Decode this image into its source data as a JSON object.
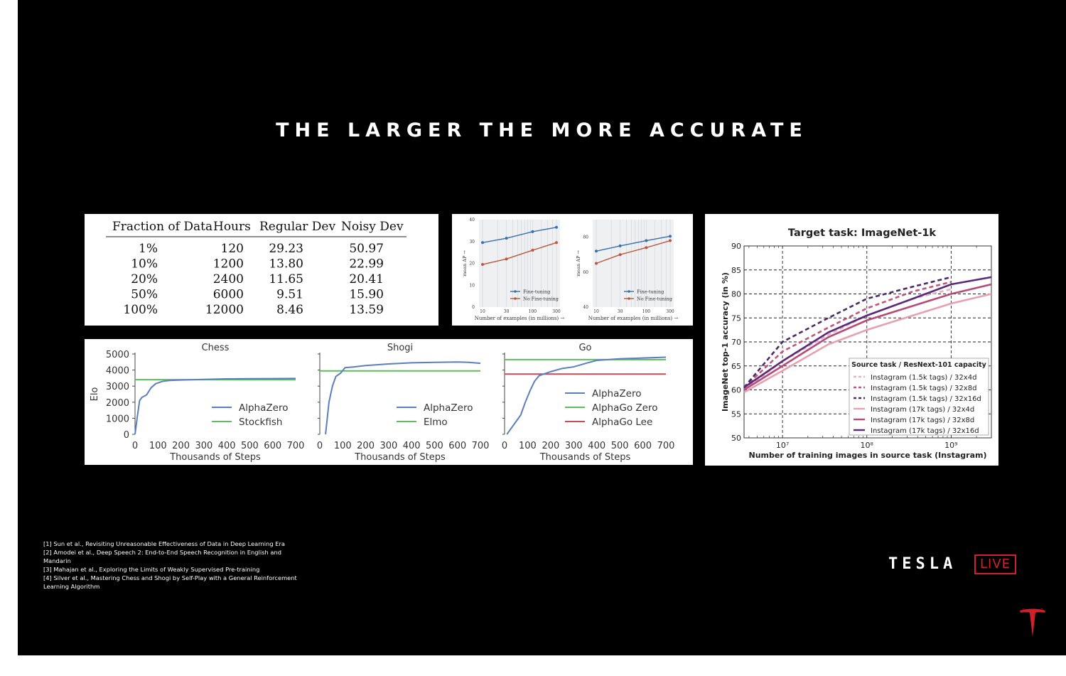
{
  "slide": {
    "title": "THE LARGER THE MORE ACCURATE",
    "references": [
      "[1] Sun et al., Revisiting Unreasonable Effectiveness of Data in Deep Learning Era",
      "[2] Amodei et al., Deep Speech 2: End-to-End Speech Recognition in English and Mandarin",
      "[3] Mahajan et al., Exploring the Limits of Weakly Supervised Pre-training",
      "[4] Silver et al., Mastering Chess and Shogi by Self-Play with a General Reinforcement Learning Algorithm"
    ],
    "brand": {
      "wordmark": "TESLA",
      "live": "LIVE",
      "logo_icon": "tesla-t-logo-icon",
      "accent": "#d0202a"
    }
  },
  "chart_data": [
    {
      "type": "table",
      "columns": [
        "Fraction of Data",
        "Hours",
        "Regular Dev",
        "Noisy Dev"
      ],
      "rows": [
        [
          "1%",
          "120",
          "29.23",
          "50.97"
        ],
        [
          "10%",
          "1200",
          "13.80",
          "22.99"
        ],
        [
          "20%",
          "2400",
          "11.65",
          "20.41"
        ],
        [
          "50%",
          "6000",
          "9.51",
          "15.90"
        ],
        [
          "100%",
          "12000",
          "8.46",
          "13.59"
        ]
      ]
    },
    {
      "type": "line",
      "xlabel": "Number of examples (in millions) →",
      "ylabel": "mean AP →",
      "x": [
        10,
        30,
        100,
        300
      ],
      "xticks": [
        "10",
        "30",
        "100",
        "300"
      ],
      "ylim": [
        0,
        40
      ],
      "yticks": [
        0,
        10,
        20,
        30,
        40
      ],
      "series": [
        {
          "name": "Fine-tuning",
          "color": "#3a6fb0",
          "values": [
            29.5,
            31.5,
            34.5,
            36.5
          ]
        },
        {
          "name": "No Fine-tuning",
          "color": "#c0553a",
          "values": [
            19.5,
            22.0,
            26.0,
            29.5
          ]
        }
      ],
      "legend": "bottom-right"
    },
    {
      "type": "line",
      "xlabel": "Number of examples (in millions) →",
      "ylabel": "mean AP →",
      "x": [
        10,
        30,
        100,
        300
      ],
      "xticks": [
        "10",
        "30",
        "100",
        "300"
      ],
      "ylim": [
        40,
        90
      ],
      "yticks": [
        40,
        60,
        80
      ],
      "series": [
        {
          "name": "Fine-tuning",
          "color": "#3a6fb0",
          "values": [
            72.0,
            75.0,
            78.0,
            80.5
          ]
        },
        {
          "name": "No Fine-tuning",
          "color": "#c0553a",
          "values": [
            65.0,
            70.0,
            74.0,
            78.0
          ]
        }
      ],
      "legend": "bottom-right"
    },
    {
      "type": "line",
      "title": "Chess",
      "xlabel": "Thousands of Steps",
      "ylabel": "Elo",
      "xlim": [
        0,
        700
      ],
      "xticks": [
        0,
        100,
        200,
        300,
        400,
        500,
        600,
        700
      ],
      "ylim": [
        0,
        5000
      ],
      "yticks": [
        0,
        1000,
        2000,
        3000,
        4000,
        5000
      ],
      "series": [
        {
          "name": "AlphaZero",
          "color": "#5b7ec0",
          "points": [
            [
              0,
              0
            ],
            [
              10,
              1100
            ],
            [
              20,
              2100
            ],
            [
              30,
              2300
            ],
            [
              50,
              2450
            ],
            [
              70,
              2900
            ],
            [
              90,
              3150
            ],
            [
              120,
              3300
            ],
            [
              150,
              3350
            ],
            [
              200,
              3380
            ],
            [
              300,
              3420
            ],
            [
              400,
              3450
            ],
            [
              500,
              3460
            ],
            [
              600,
              3470
            ],
            [
              700,
              3480
            ]
          ]
        },
        {
          "name": "Stockfish",
          "color": "#5cbf5c",
          "points": [
            [
              0,
              3400
            ],
            [
              700,
              3400
            ]
          ]
        }
      ],
      "legend": "bottom-right"
    },
    {
      "type": "line",
      "title": "Shogi",
      "xlabel": "Thousands of Steps",
      "xlim": [
        0,
        700
      ],
      "xticks": [
        0,
        100,
        200,
        300,
        400,
        500,
        600,
        700
      ],
      "ylim": [
        0,
        5000
      ],
      "series": [
        {
          "name": "AlphaZero",
          "color": "#5b7ec0",
          "points": [
            [
              25,
              0
            ],
            [
              40,
              2000
            ],
            [
              55,
              3000
            ],
            [
              70,
              3600
            ],
            [
              90,
              3800
            ],
            [
              110,
              4150
            ],
            [
              150,
              4200
            ],
            [
              200,
              4280
            ],
            [
              300,
              4380
            ],
            [
              400,
              4450
            ],
            [
              500,
              4480
            ],
            [
              600,
              4500
            ],
            [
              650,
              4480
            ],
            [
              700,
              4420
            ]
          ]
        },
        {
          "name": "Elmo",
          "color": "#5cbf5c",
          "points": [
            [
              0,
              3950
            ],
            [
              700,
              3950
            ]
          ]
        }
      ],
      "legend": "bottom-right"
    },
    {
      "type": "line",
      "title": "Go",
      "xlabel": "Thousands of Steps",
      "xlim": [
        0,
        700
      ],
      "xticks": [
        0,
        100,
        200,
        300,
        400,
        500,
        600,
        700
      ],
      "ylim": [
        0,
        5000
      ],
      "series": [
        {
          "name": "AlphaZero",
          "color": "#5b7ec0",
          "points": [
            [
              10,
              0
            ],
            [
              40,
              600
            ],
            [
              70,
              1200
            ],
            [
              90,
              2000
            ],
            [
              110,
              2700
            ],
            [
              130,
              3300
            ],
            [
              150,
              3650
            ],
            [
              200,
              3900
            ],
            [
              250,
              4100
            ],
            [
              300,
              4200
            ],
            [
              360,
              4450
            ],
            [
              400,
              4600
            ],
            [
              500,
              4700
            ],
            [
              600,
              4750
            ],
            [
              700,
              4800
            ]
          ]
        },
        {
          "name": "AlphaGo Zero",
          "color": "#5cbf5c",
          "points": [
            [
              0,
              4650
            ],
            [
              700,
              4650
            ]
          ]
        },
        {
          "name": "AlphaGo Lee",
          "color": "#c94a5a",
          "points": [
            [
              0,
              3750
            ],
            [
              700,
              3750
            ]
          ]
        }
      ],
      "legend": "center-right"
    },
    {
      "type": "line",
      "title": "Target task: ImageNet-1k",
      "xlabel": "Number of training images in source task (Instagram)",
      "ylabel": "ImageNet top-1 accuracy (in %)",
      "xscale": "log",
      "xlim": [
        3500000,
        3000000000
      ],
      "xticks": [
        "10⁷",
        "10⁸",
        "10⁹"
      ],
      "ylim": [
        50,
        90
      ],
      "yticks": [
        50,
        55,
        60,
        65,
        70,
        75,
        80,
        85,
        90
      ],
      "legend_title": "Source task / ResNext-101 capacity",
      "series": [
        {
          "name": "Instagram (1.5k tags) / 32x4d",
          "color": "#e6b3c5",
          "dash": "dashed",
          "x": [
            3500000,
            10000000,
            35000000,
            100000000,
            350000000,
            1000000000
          ],
          "values": [
            60.0,
            66.0,
            71.5,
            75.5,
            79.0,
            81.0
          ]
        },
        {
          "name": "Instagram (1.5k tags) / 32x8d",
          "color": "#c2557a",
          "dash": "dashed",
          "x": [
            3500000,
            10000000,
            35000000,
            100000000,
            350000000,
            1000000000
          ],
          "values": [
            60.5,
            68.0,
            73.0,
            77.0,
            80.5,
            82.5
          ]
        },
        {
          "name": "Instagram (1.5k tags) / 32x16d",
          "color": "#4b2a6b",
          "dash": "dashed",
          "x": [
            3500000,
            10000000,
            35000000,
            100000000,
            350000000,
            1000000000
          ],
          "values": [
            60.5,
            70.0,
            75.0,
            79.0,
            81.5,
            83.5
          ]
        },
        {
          "name": "Instagram (17k tags) / 32x4d",
          "color": "#e8a0b0",
          "dash": "solid",
          "x": [
            3500000,
            10000000,
            35000000,
            100000000,
            350000000,
            1000000000,
            3000000000
          ],
          "values": [
            59.5,
            64.0,
            69.5,
            72.5,
            75.5,
            78.0,
            80.0
          ]
        },
        {
          "name": "Instagram (17k tags) / 32x8d",
          "color": "#b84a78",
          "dash": "solid",
          "x": [
            3500000,
            10000000,
            35000000,
            100000000,
            350000000,
            1000000000,
            3000000000
          ],
          "values": [
            60.0,
            65.0,
            71.0,
            74.5,
            77.5,
            80.0,
            82.0
          ]
        },
        {
          "name": "Instagram (17k tags) / 32x16d",
          "color": "#5a2a78",
          "dash": "solid",
          "x": [
            3500000,
            10000000,
            35000000,
            100000000,
            350000000,
            1000000000,
            3000000000
          ],
          "values": [
            60.5,
            66.0,
            72.0,
            75.5,
            79.0,
            82.0,
            83.5
          ]
        }
      ],
      "legend": "bottom-right",
      "grid": true
    }
  ]
}
